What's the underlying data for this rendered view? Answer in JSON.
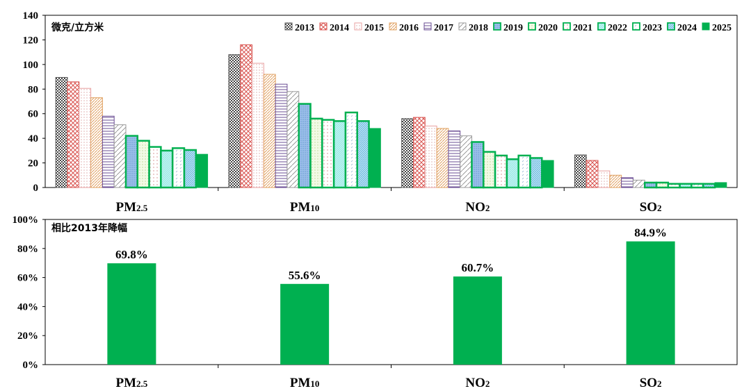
{
  "chart_data": [
    {
      "type": "bar",
      "unit_label": "微克/立方米",
      "categories": [
        "PM2.5",
        "PM10",
        "NO2",
        "SO2"
      ],
      "ylim": [
        0,
        140
      ],
      "yticks": [
        0,
        20,
        40,
        60,
        80,
        100,
        120,
        140
      ],
      "legend_position": "top-right",
      "series": [
        {
          "name": "2013",
          "values": [
            89.5,
            108,
            56,
            26.5
          ],
          "color": "#555555",
          "pattern": "checker"
        },
        {
          "name": "2014",
          "values": [
            85.9,
            116,
            57,
            22
          ],
          "color": "#d9534f",
          "pattern": "crosshatch"
        },
        {
          "name": "2015",
          "values": [
            80.6,
            101,
            50,
            13.5
          ],
          "color": "#e8a0a0",
          "pattern": "dots"
        },
        {
          "name": "2016",
          "values": [
            73,
            92,
            48,
            10
          ],
          "color": "#e0a060",
          "pattern": "diagonal"
        },
        {
          "name": "2017",
          "values": [
            58,
            84,
            46,
            8
          ],
          "color": "#6a4c93",
          "pattern": "horizontal"
        },
        {
          "name": "2018",
          "values": [
            51,
            78,
            42,
            6
          ],
          "color": "#999999",
          "pattern": "wide-diagonal"
        },
        {
          "name": "2019",
          "values": [
            42,
            68,
            37,
            4
          ],
          "color": "#6a9fd8",
          "pattern": "blue-dots"
        },
        {
          "name": "2020",
          "values": [
            38,
            56,
            29,
            4
          ],
          "color": "#c8e6a0",
          "pattern": "light-green"
        },
        {
          "name": "2021",
          "values": [
            33,
            55,
            26,
            3
          ],
          "color": "#d08080",
          "pattern": "sparse-dots"
        },
        {
          "name": "2022",
          "values": [
            30,
            54,
            23,
            3
          ],
          "color": "#7fe0e0",
          "pattern": "cyan"
        },
        {
          "name": "2023",
          "values": [
            32,
            61,
            26,
            3
          ],
          "color": "#90b0d0",
          "pattern": "dashes"
        },
        {
          "name": "2024",
          "values": [
            30.5,
            54,
            24,
            3
          ],
          "color": "#5ab0d8",
          "pattern": "blue-diagonal"
        },
        {
          "name": "2025",
          "values": [
            27,
            48,
            22,
            4
          ],
          "color": "#00b050",
          "pattern": "solid"
        }
      ]
    },
    {
      "type": "bar",
      "title": "相比2013年降幅",
      "categories": [
        "PM2.5",
        "PM10",
        "NO2",
        "SO2"
      ],
      "values": [
        69.8,
        55.6,
        60.7,
        84.9
      ],
      "data_labels": [
        "69.8%",
        "55.6%",
        "60.7%",
        "84.9%"
      ],
      "ylim": [
        0,
        100
      ],
      "yticks": [
        "0%",
        "20%",
        "40%",
        "60%",
        "80%",
        "100%"
      ],
      "color": "#00b050"
    }
  ]
}
